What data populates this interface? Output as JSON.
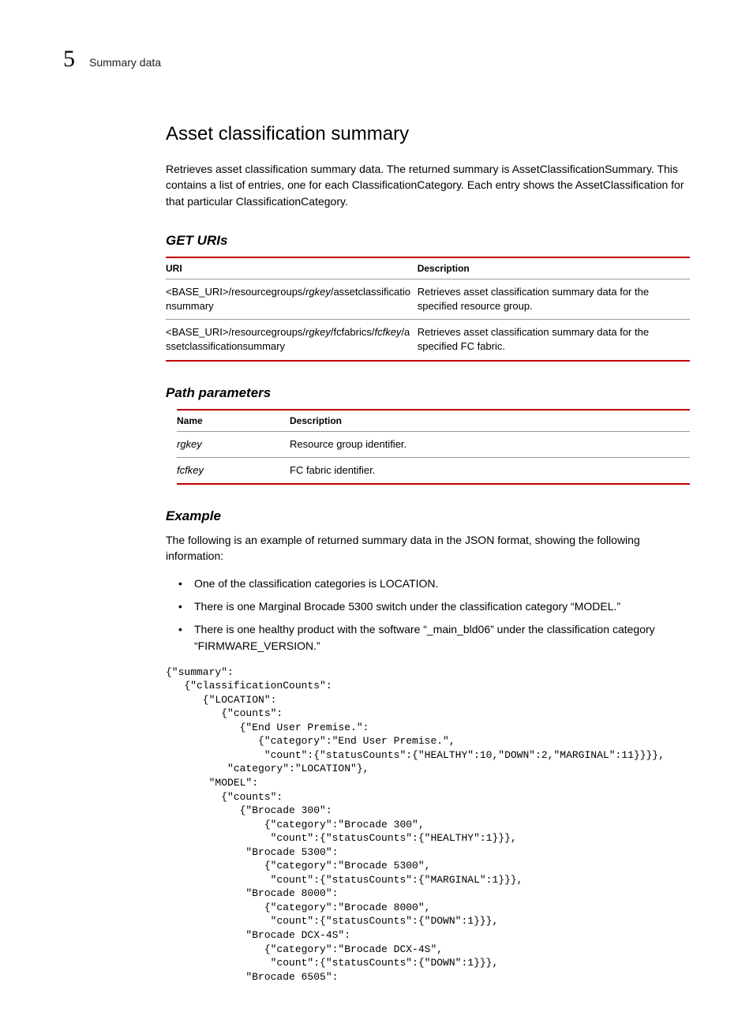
{
  "header": {
    "chapter_number": "5",
    "chapter_title": "Summary data"
  },
  "section": {
    "title": "Asset classification summary",
    "intro": "Retrieves asset classification summary data. The returned summary is AssetClassificationSummary. This contains a list of entries, one for each ClassificationCategory. Each entry shows the AssetClassification for that particular ClassificationCategory."
  },
  "get_uris": {
    "heading": "GET URIs",
    "columns": {
      "uri": "URI",
      "description": "Description"
    },
    "rows": [
      {
        "uri_prefix": "<BASE_URI>/resourcegroups/",
        "uri_param": "rgkey",
        "uri_suffix": "/assetclassificationsummary",
        "description": "Retrieves asset classification summary data for the specified resource group."
      },
      {
        "uri_prefix": "<BASE_URI>/resourcegroups/",
        "uri_param": "rgkey",
        "uri_mid": "/fcfabrics/",
        "uri_param2": "fcfkey",
        "uri_suffix": "/assetclassificationsummary",
        "description": "Retrieves asset classification summary data for the specified FC fabric."
      }
    ]
  },
  "path_params": {
    "heading": "Path parameters",
    "columns": {
      "name": "Name",
      "description": "Description"
    },
    "rows": [
      {
        "name": "rgkey",
        "description": "Resource group identifier."
      },
      {
        "name": "fcfkey",
        "description": "FC fabric identifier."
      }
    ]
  },
  "example": {
    "heading": "Example",
    "text": "The following is an example of returned summary data in the JSON format, showing the following information:",
    "bullets": [
      "One of the classification categories is LOCATION.",
      "There is one Marginal Brocade 5300 switch under the classification category “MODEL.”",
      "There is one healthy product with the software “_main_bld06” under the classification category “FIRMWARE_VERSION.”"
    ],
    "code": "{\"summary\":\n   {\"classificationCounts\":\n      {\"LOCATION\":\n         {\"counts\":\n            {\"End User Premise.\":\n               {\"category\":\"End User Premise.\",\n                \"count\":{\"statusCounts\":{\"HEALTHY\":10,\"DOWN\":2,\"MARGINAL\":11}}}},\n          \"category\":\"LOCATION\"},\n       \"MODEL\":\n         {\"counts\":\n            {\"Brocade 300\":\n                {\"category\":\"Brocade 300\",\n                 \"count\":{\"statusCounts\":{\"HEALTHY\":1}}},\n             \"Brocade 5300\":\n                {\"category\":\"Brocade 5300\",\n                 \"count\":{\"statusCounts\":{\"MARGINAL\":1}}},\n             \"Brocade 8000\":\n                {\"category\":\"Brocade 8000\",\n                 \"count\":{\"statusCounts\":{\"DOWN\":1}}},\n             \"Brocade DCX-4S\":\n                {\"category\":\"Brocade DCX-4S\",\n                 \"count\":{\"statusCounts\":{\"DOWN\":1}}},\n             \"Brocade 6505\":"
  },
  "colors": {
    "rule_red": "#c00000",
    "rule_gray": "#999999",
    "text": "#000000",
    "background": "#ffffff"
  }
}
